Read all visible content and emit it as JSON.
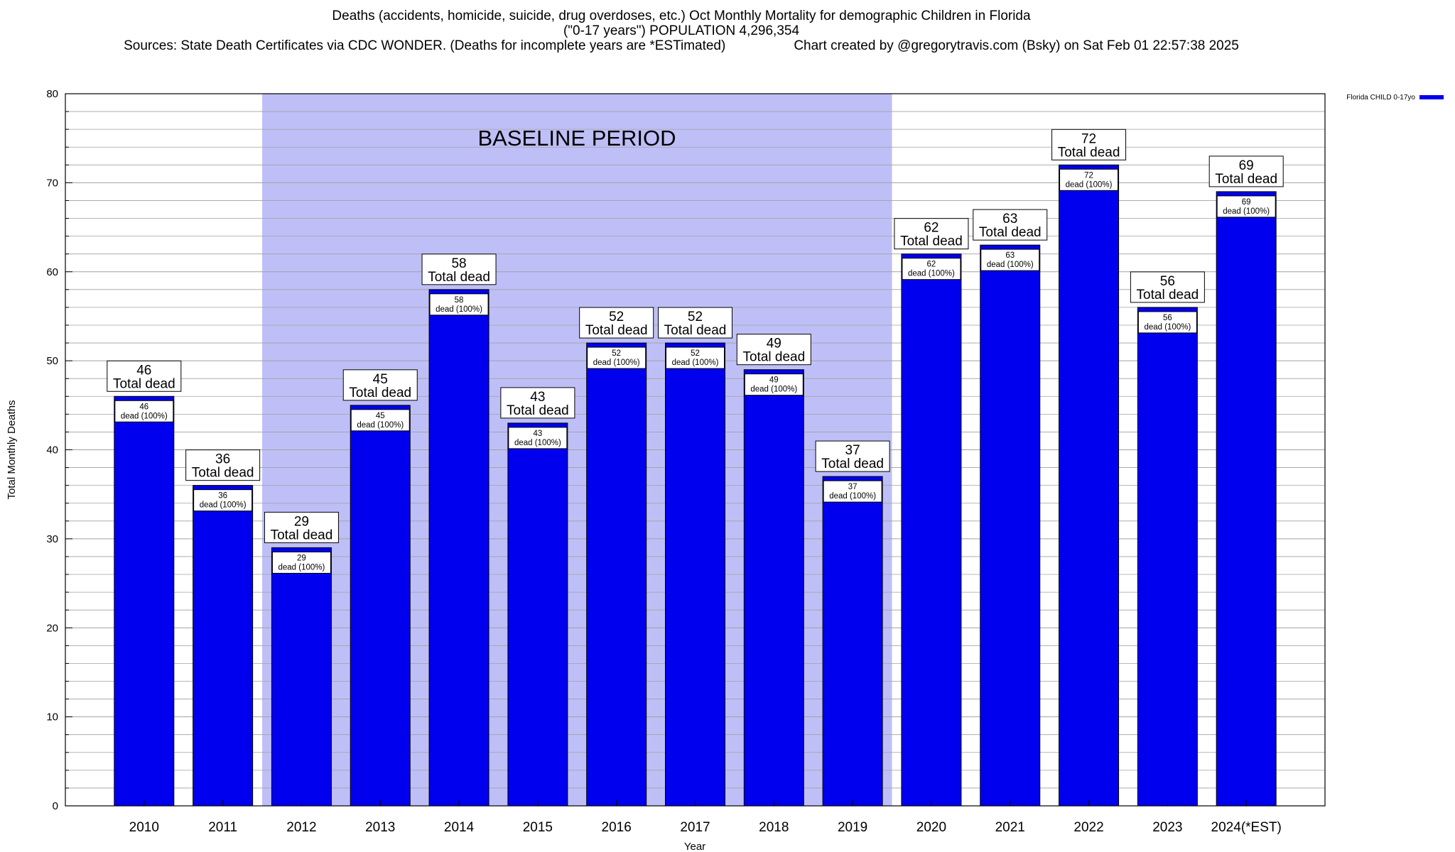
{
  "title": {
    "line1": "Deaths (accidents, homicide, suicide, drug overdoses, etc.) Oct Monthly Mortality for demographic Children in Florida",
    "line2": "(\"0-17 years\") POPULATION 4,296,354",
    "line3_left": "Sources: State Death Certificates via CDC WONDER. (Deaths for incomplete years are *ESTimated)",
    "line3_right": "Chart created by @gregorytravis.com (Bsky) on Sat Feb 01 22:57:38 2025"
  },
  "colors": {
    "bar": "#0000ee",
    "bar_outline": "#000000",
    "baseline_band": "#bfbff7",
    "grid": "#a0a0a0"
  },
  "chart_data": {
    "type": "bar",
    "title": "Deaths (accidents, homicide, suicide, drug overdoses, etc.) Oct Monthly Mortality for demographic Children in Florida",
    "xlabel": "Year",
    "ylabel": "Total Monthly Deaths",
    "ylim": [
      0,
      80
    ],
    "yticks": [
      0,
      10,
      20,
      30,
      40,
      50,
      60,
      70,
      80
    ],
    "grid": true,
    "legend_position": "top-right",
    "categories": [
      "2010",
      "2011",
      "2012",
      "2013",
      "2014",
      "2015",
      "2016",
      "2017",
      "2018",
      "2019",
      "2020",
      "2021",
      "2022",
      "2023",
      "2024(*EST)"
    ],
    "series": [
      {
        "name": "Florida CHILD 0-17yo",
        "values": [
          46,
          36,
          29,
          45,
          58,
          43,
          52,
          52,
          49,
          37,
          62,
          63,
          72,
          56,
          69
        ]
      }
    ],
    "label_total_suffix": "Total dead",
    "label_inner_suffix": "dead (100%)",
    "baseline_band": {
      "from": "2012",
      "to": "2019",
      "label": "BASELINE PERIOD"
    }
  }
}
